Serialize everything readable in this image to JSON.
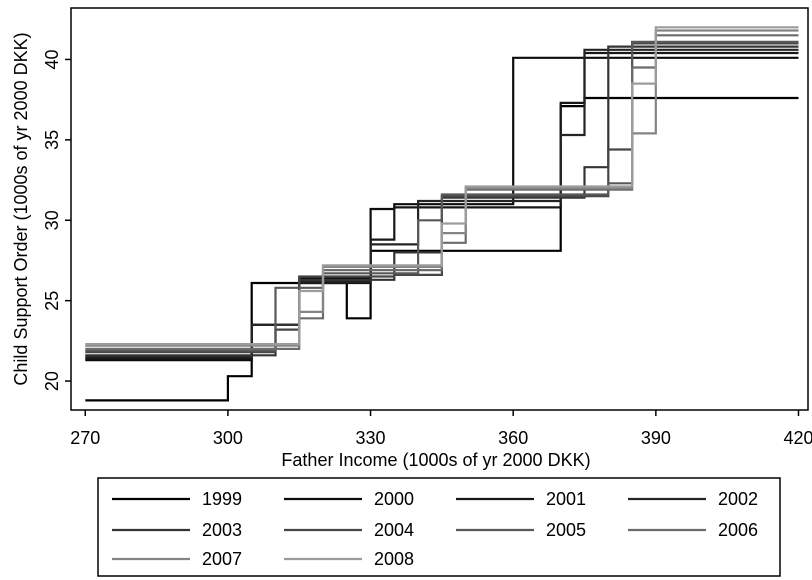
{
  "chart_data": {
    "type": "line",
    "title": "",
    "xlabel": "Father Income (1000s of yr 2000 DKK)",
    "ylabel": "Child Support Order (1000s of yr 2000 DKK)",
    "xlim": [
      267,
      422
    ],
    "ylim": [
      18.2,
      43.2
    ],
    "x_ticks": [
      270,
      300,
      330,
      360,
      390,
      420
    ],
    "y_ticks": [
      20,
      25,
      30,
      35,
      40
    ],
    "grid": false,
    "legend_position": "bottom",
    "series": [
      {
        "name": "1999",
        "color": "#000000",
        "x": [
          270,
          300,
          300,
          305,
          305,
          325,
          325,
          330,
          330,
          370,
          370,
          375,
          375,
          420
        ],
        "y": [
          18.8,
          18.8,
          20.3,
          20.3,
          26.1,
          26.1,
          23.9,
          23.9,
          28.1,
          28.1,
          37.1,
          37.1,
          37.6,
          37.6
        ]
      },
      {
        "name": "2000",
        "color": "#0c0c0c",
        "x": [
          270,
          305,
          305,
          315,
          315,
          330,
          330,
          335,
          335,
          360,
          360,
          420
        ],
        "y": [
          21.3,
          21.3,
          23.5,
          23.5,
          26.4,
          26.4,
          30.7,
          30.7,
          31.0,
          31.0,
          40.1,
          40.1
        ]
      },
      {
        "name": "2001",
        "color": "#181818",
        "x": [
          270,
          305,
          305,
          315,
          315,
          330,
          330,
          335,
          335,
          370,
          370,
          375,
          375,
          420
        ],
        "y": [
          21.4,
          21.4,
          23.5,
          23.5,
          26.1,
          26.1,
          28.8,
          28.8,
          30.8,
          30.8,
          37.3,
          37.3,
          40.4,
          40.4
        ]
      },
      {
        "name": "2002",
        "color": "#242424",
        "x": [
          270,
          305,
          305,
          315,
          315,
          330,
          330,
          340,
          340,
          370,
          370,
          375,
          375,
          420
        ],
        "y": [
          21.5,
          21.5,
          23.5,
          23.5,
          26.2,
          26.2,
          28.5,
          28.5,
          31.2,
          31.2,
          35.3,
          35.3,
          40.6,
          40.6
        ]
      },
      {
        "name": "2003",
        "color": "#343434",
        "x": [
          270,
          310,
          310,
          315,
          315,
          335,
          335,
          345,
          345,
          375,
          375,
          380,
          380,
          420
        ],
        "y": [
          21.6,
          21.6,
          23.5,
          23.5,
          26.3,
          26.3,
          28.0,
          28.0,
          31.4,
          31.4,
          33.3,
          33.3,
          40.8,
          40.8
        ]
      },
      {
        "name": "2004",
        "color": "#464646",
        "x": [
          270,
          310,
          310,
          315,
          315,
          335,
          335,
          345,
          345,
          380,
          380,
          385,
          385,
          420
        ],
        "y": [
          21.8,
          21.8,
          23.2,
          23.2,
          26.5,
          26.5,
          26.6,
          26.6,
          31.5,
          31.5,
          34.4,
          34.4,
          41.0,
          41.0
        ]
      },
      {
        "name": "2005",
        "color": "#585858",
        "x": [
          270,
          310,
          310,
          320,
          320,
          340,
          340,
          345,
          345,
          380,
          380,
          385,
          385,
          420
        ],
        "y": [
          21.9,
          21.9,
          25.8,
          25.8,
          26.7,
          26.7,
          30.0,
          30.0,
          31.6,
          31.6,
          32.3,
          32.3,
          41.1,
          41.1
        ]
      },
      {
        "name": "2006",
        "color": "#6b6b6b",
        "x": [
          270,
          315,
          315,
          320,
          320,
          345,
          345,
          350,
          350,
          385,
          385,
          390,
          390,
          420
        ],
        "y": [
          22.0,
          22.0,
          23.9,
          23.9,
          26.9,
          26.9,
          28.6,
          28.6,
          31.9,
          31.9,
          39.5,
          39.5,
          41.5,
          41.5
        ]
      },
      {
        "name": "2007",
        "color": "#848484",
        "x": [
          270,
          315,
          315,
          320,
          320,
          345,
          345,
          350,
          350,
          385,
          385,
          390,
          390,
          420
        ],
        "y": [
          22.2,
          22.2,
          24.3,
          24.3,
          27.1,
          27.1,
          29.2,
          29.2,
          32.0,
          32.0,
          35.4,
          35.4,
          41.8,
          41.8
        ]
      },
      {
        "name": "2008",
        "color": "#9c9c9c",
        "x": [
          270,
          315,
          315,
          320,
          320,
          345,
          345,
          350,
          350,
          385,
          385,
          390,
          390,
          420
        ],
        "y": [
          22.3,
          22.3,
          25.6,
          25.6,
          27.2,
          27.2,
          29.8,
          29.8,
          32.1,
          32.1,
          38.5,
          38.5,
          42.0,
          42.0
        ]
      }
    ]
  }
}
